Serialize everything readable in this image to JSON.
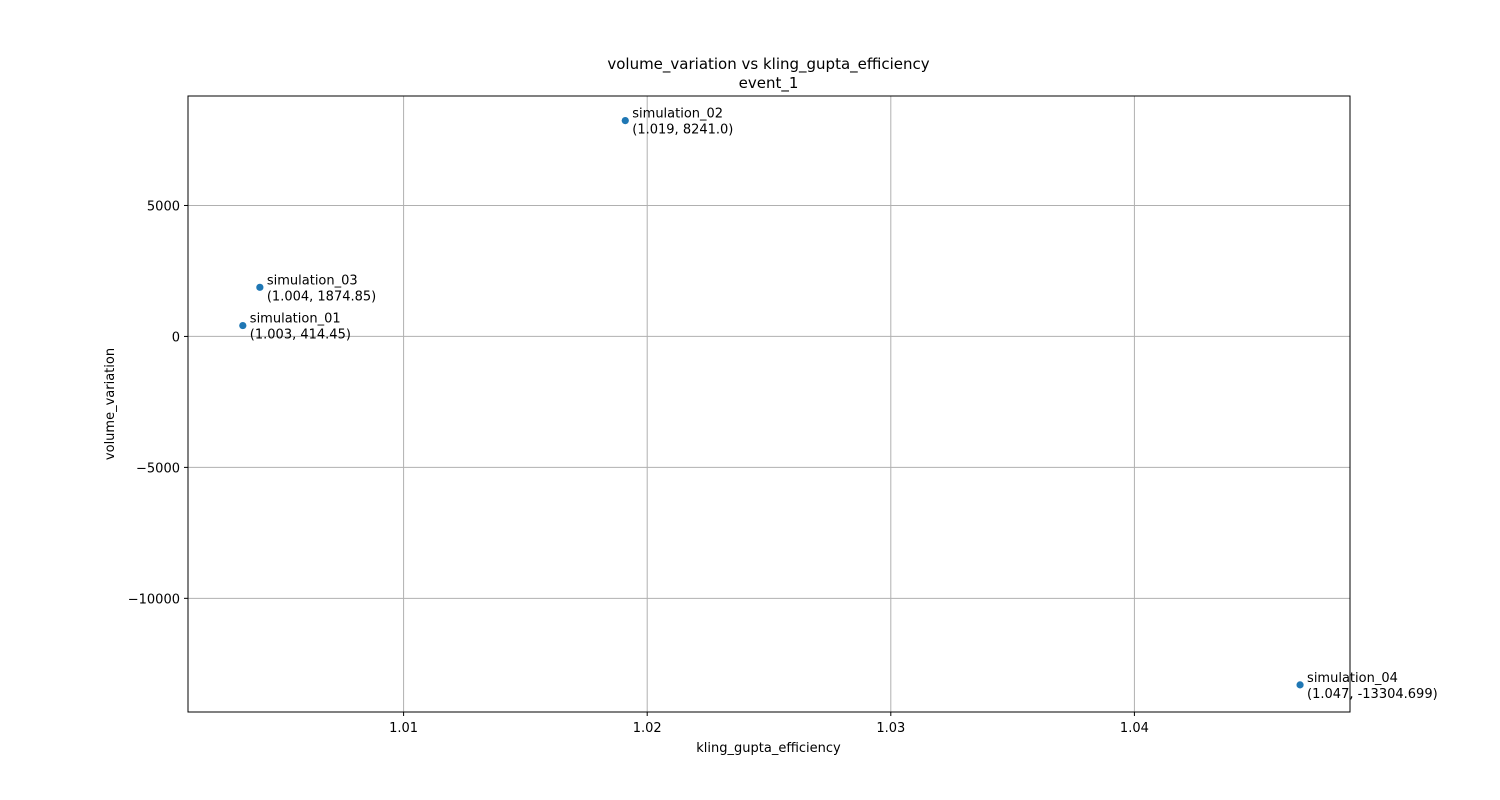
{
  "chart_data": {
    "type": "scatter",
    "title": "volume_variation vs kling_gupta_efficiency",
    "subtitle": "event_1",
    "xlabel": "kling_gupta_efficiency",
    "ylabel": "volume_variation",
    "xlim": [
      1.00115,
      1.04885
    ],
    "ylim": [
      -14340,
      9180
    ],
    "xticks": [
      1.01,
      1.02,
      1.03,
      1.04
    ],
    "xtick_labels": [
      "1.01",
      "1.02",
      "1.03",
      "1.04"
    ],
    "yticks": [
      -10000,
      -5000,
      0,
      5000
    ],
    "ytick_labels": [
      "−10000",
      "−5000",
      "0",
      "5000"
    ],
    "grid": true,
    "marker_color": "#1f77b4",
    "points": [
      {
        "label": "simulation_01",
        "coords": "(1.003, 414.45)",
        "x": 1.0034,
        "y": 414.45
      },
      {
        "label": "simulation_02",
        "coords": "(1.019, 8241.0)",
        "x": 1.0191,
        "y": 8241.0
      },
      {
        "label": "simulation_03",
        "coords": "(1.004, 1874.85)",
        "x": 1.0041,
        "y": 1874.85
      },
      {
        "label": "simulation_04",
        "coords": "(1.047, -13304.699)",
        "x": 1.0468,
        "y": -13304.699
      }
    ]
  }
}
